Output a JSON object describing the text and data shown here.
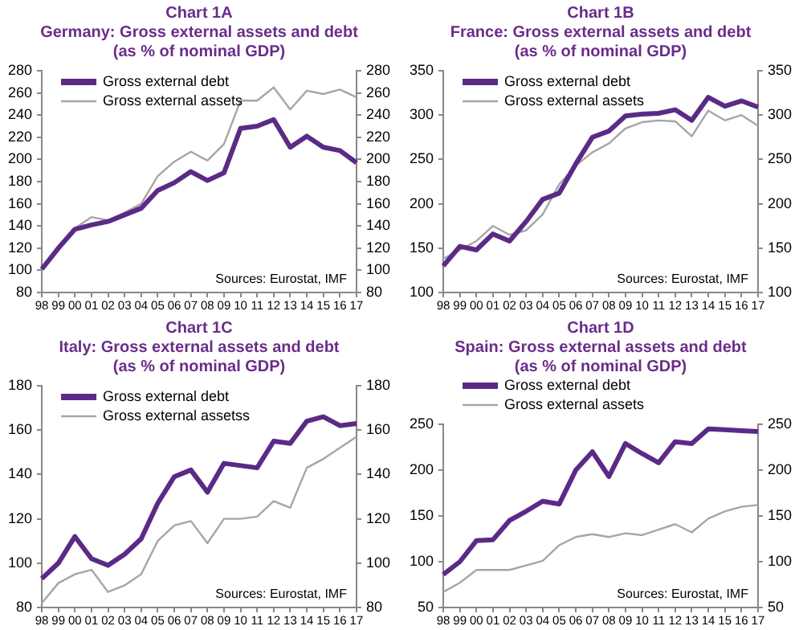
{
  "chart_data": [
    {
      "type": "line",
      "title": "Chart 1A",
      "subtitle": "Germany: Gross external assets and debt\n(as % of nominal GDP)",
      "categories": [
        "98",
        "99",
        "00",
        "01",
        "02",
        "03",
        "04",
        "05",
        "06",
        "07",
        "08",
        "09",
        "10",
        "11",
        "12",
        "13",
        "14",
        "15",
        "16",
        "17"
      ],
      "series": [
        {
          "name": "Gross external debt",
          "color": "#5b2a86",
          "values": [
            101,
            120,
            137,
            141,
            144,
            150,
            156,
            172,
            179,
            189,
            181,
            188,
            228,
            230,
            236,
            211,
            221,
            211,
            208,
            197
          ]
        },
        {
          "name": "Gross external assets",
          "color": "#a6a6a6",
          "values": [
            101,
            118,
            138,
            148,
            145,
            152,
            160,
            185,
            198,
            207,
            199,
            214,
            253,
            253,
            265,
            245,
            262,
            259,
            263,
            256
          ]
        }
      ],
      "ylim": [
        80,
        280
      ],
      "yticks": [
        80,
        100,
        120,
        140,
        160,
        180,
        200,
        220,
        240,
        260,
        280
      ],
      "y2lim": [
        80,
        280
      ],
      "y2ticks": [
        80,
        100,
        120,
        140,
        160,
        180,
        200,
        220,
        240,
        260,
        280
      ],
      "grid": false,
      "legend": "top left",
      "annotations": [
        "Sources: Eurostat, IMF"
      ]
    },
    {
      "type": "line",
      "title": "Chart 1B",
      "subtitle": "France: Gross external assets and debt\n(as % of nominal GDP)",
      "categories": [
        "98",
        "99",
        "00",
        "01",
        "02",
        "03",
        "04",
        "05",
        "06",
        "07",
        "08",
        "09",
        "10",
        "11",
        "12",
        "13",
        "14",
        "15",
        "16",
        "17"
      ],
      "series": [
        {
          "name": "Gross external debt",
          "color": "#5b2a86",
          "values": [
            130,
            152,
            148,
            166,
            158,
            180,
            205,
            212,
            245,
            275,
            282,
            299,
            301,
            302,
            306,
            294,
            320,
            310,
            316,
            309
          ]
        },
        {
          "name": "Gross external assets",
          "color": "#a6a6a6",
          "values": [
            138,
            148,
            158,
            175,
            165,
            170,
            188,
            222,
            243,
            258,
            268,
            285,
            292,
            294,
            293,
            276,
            305,
            294,
            300,
            288
          ]
        }
      ],
      "ylim": [
        100,
        350
      ],
      "yticks": [
        100,
        150,
        200,
        250,
        300,
        350
      ],
      "y2lim": [
        100,
        350
      ],
      "y2ticks": [
        100,
        150,
        200,
        250,
        300,
        350
      ],
      "grid": false,
      "legend": "top left",
      "annotations": [
        "Sources: Eurostat, IMF"
      ]
    },
    {
      "type": "line",
      "title": "Chart 1C",
      "subtitle": "Italy: Gross external assets and debt\n(as % of nominal GDP)",
      "categories": [
        "98",
        "99",
        "00",
        "01",
        "02",
        "03",
        "04",
        "05",
        "06",
        "07",
        "08",
        "09",
        "10",
        "11",
        "12",
        "13",
        "14",
        "15",
        "16",
        "17"
      ],
      "series": [
        {
          "name": "Gross external debt",
          "color": "#5b2a86",
          "values": [
            93,
            100,
            112,
            102,
            99,
            104,
            111,
            127,
            139,
            142,
            132,
            145,
            144,
            143,
            155,
            154,
            164,
            166,
            162,
            163
          ]
        },
        {
          "name": "Gross external assetss",
          "color": "#a6a6a6",
          "values": [
            82,
            91,
            95,
            97,
            87,
            90,
            95,
            110,
            117,
            119,
            109,
            120,
            120,
            121,
            128,
            125,
            143,
            147,
            152,
            157
          ]
        }
      ],
      "ylim": [
        80,
        180
      ],
      "yticks": [
        80,
        100,
        120,
        140,
        160,
        180
      ],
      "y2lim": [
        80,
        180
      ],
      "y2ticks": [
        80,
        100,
        120,
        140,
        160,
        180
      ],
      "grid": false,
      "legend": "top left",
      "annotations": [
        "Sources: Eurostat, IMF"
      ]
    },
    {
      "type": "line",
      "title": "Chart 1D",
      "subtitle": "Spain: Gross external assets and debt\n(as % of nominal GDP)",
      "categories": [
        "98",
        "99",
        "00",
        "01",
        "02",
        "03",
        "04",
        "05",
        "06",
        "07",
        "08",
        "09",
        "10",
        "11",
        "12",
        "13",
        "14",
        "15",
        "16",
        "17"
      ],
      "series": [
        {
          "name": "Gross external debt",
          "color": "#5b2a86",
          "values": [
            86,
            100,
            123,
            124,
            145,
            155,
            166,
            163,
            200,
            220,
            193,
            229,
            218,
            208,
            231,
            229,
            245,
            244,
            243,
            242
          ]
        },
        {
          "name": "Gross external assets",
          "color": "#a6a6a6",
          "values": [
            67,
            77,
            91,
            91,
            91,
            96,
            101,
            118,
            127,
            130,
            127,
            131,
            129,
            135,
            141,
            132,
            147,
            155,
            160,
            162
          ]
        }
      ],
      "ylim": [
        50,
        250
      ],
      "yticks": [
        50,
        100,
        150,
        200,
        250
      ],
      "y2lim": [
        50,
        250
      ],
      "y2ticks": [
        50,
        100,
        150,
        200,
        250
      ],
      "grid": false,
      "legend": "top",
      "annotations": [
        "Sources: Eurostat, IMF"
      ]
    }
  ]
}
